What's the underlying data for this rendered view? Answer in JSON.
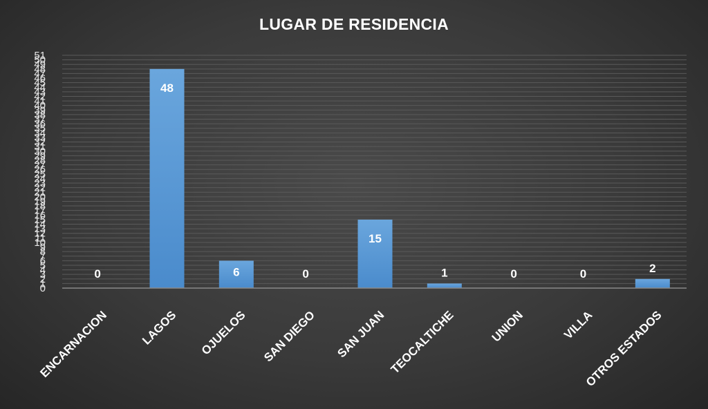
{
  "chart_data": {
    "type": "bar",
    "title": "LUGAR DE RESIDENCIA",
    "xlabel": "",
    "ylabel": "",
    "categories": [
      "ENCARNACION",
      "LAGOS",
      "OJUELOS",
      "SAN DIEGO",
      "SAN JUAN",
      "TEOCALTICHE",
      "UNION",
      "VILLA",
      "OTROS ESTADOS"
    ],
    "values": [
      0,
      48,
      6,
      0,
      15,
      1,
      0,
      0,
      2
    ],
    "ylim": [
      0,
      51
    ],
    "y_ticks": [
      0,
      1,
      2,
      3,
      4,
      5,
      6,
      7,
      8,
      9,
      10,
      11,
      12,
      13,
      14,
      15,
      16,
      17,
      18,
      19,
      20,
      21,
      22,
      23,
      24,
      25,
      26,
      27,
      28,
      29,
      30,
      31,
      32,
      33,
      34,
      35,
      36,
      37,
      38,
      39,
      40,
      41,
      42,
      43,
      44,
      45,
      46,
      47,
      48,
      49,
      50,
      51
    ],
    "grid": true,
    "data_labels": true,
    "legend": "none",
    "colors": {
      "bar": "#5b9bd5",
      "bar_dark": "#3f7fc0",
      "background": "#3a3a3a",
      "text": "#ffffff",
      "grid": "#5a5a5a"
    }
  }
}
